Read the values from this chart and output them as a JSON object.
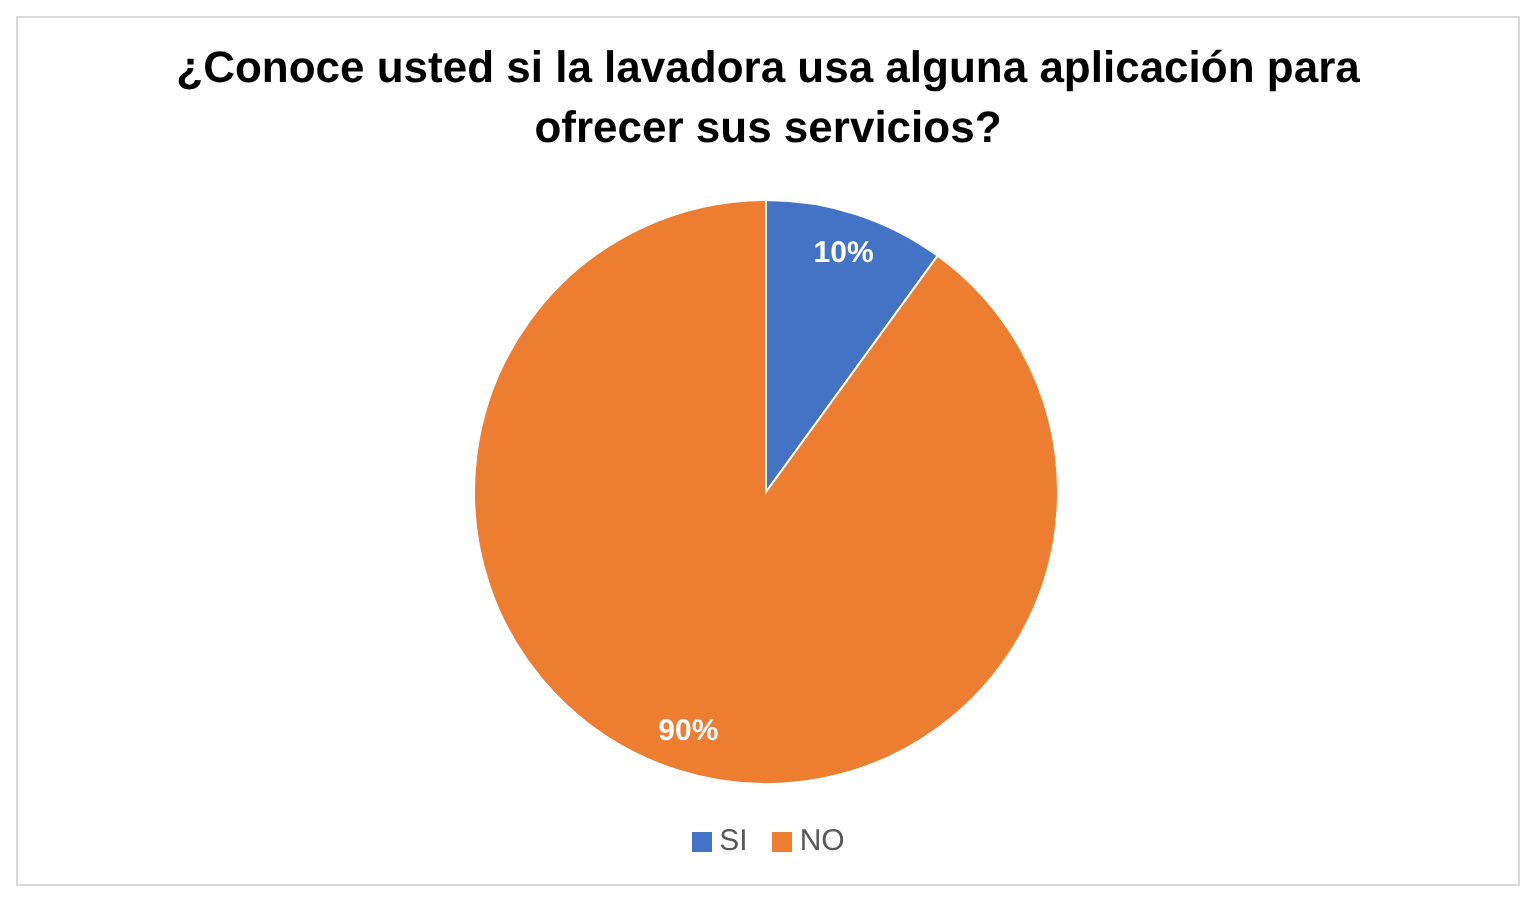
{
  "chart_data": {
    "type": "pie",
    "title": "¿Conoce usted si la lavadora usa alguna aplicación para ofrecer sus servicios?",
    "categories": [
      "SI",
      "NO"
    ],
    "values": [
      10,
      90
    ],
    "colors": [
      "#4472c4",
      "#ed7d31"
    ],
    "value_labels": [
      "10%",
      "90%"
    ],
    "legend": "bottom"
  }
}
